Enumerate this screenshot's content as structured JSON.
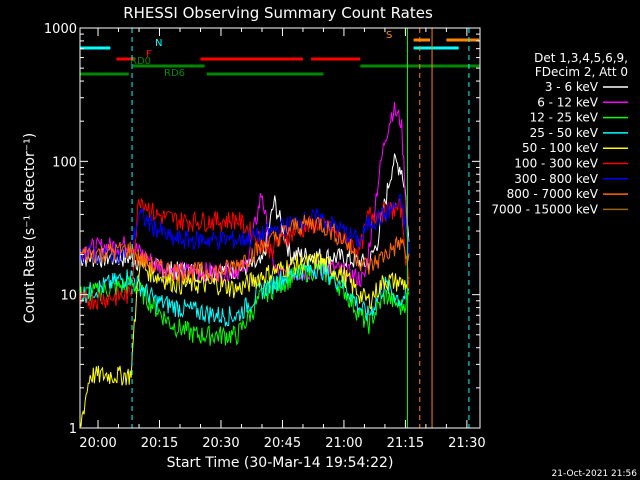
{
  "chart_data": {
    "type": "line",
    "title": "RHESSI Observing Summary Count Rates",
    "xlabel": "Start Time (30-Mar-14 19:54:22)",
    "ylabel": "Count Rate (s⁻¹ detector⁻¹)",
    "y_scale": "log",
    "ylim": [
      1,
      1000
    ],
    "xlim_minutes": [
      -4.4,
      36.6
    ],
    "x_ticks": [
      {
        "label": "20:00",
        "t": 0
      },
      {
        "label": "20:15",
        "t": 15
      },
      {
        "label": "20:30",
        "t": 30
      },
      {
        "label": "20:45",
        "t": 45
      },
      {
        "label": "21:00",
        "t": 60
      },
      {
        "label": "21:15",
        "t": 75
      },
      {
        "label": "21:30",
        "t": 90
      }
    ],
    "y_ticks": [
      {
        "label": "1",
        "v": 1
      },
      {
        "label": "10",
        "v": 10
      },
      {
        "label": "100",
        "v": 100
      },
      {
        "label": "1000",
        "v": 1000
      }
    ],
    "legend_header": [
      "Det 1,3,4,5,6,9,",
      "FDecim 2, Att 0"
    ],
    "series": [
      {
        "name": "3 - 6 keV",
        "color": "#ffffff",
        "x": [
          -4.4,
          8,
          10,
          14,
          20,
          30,
          36,
          40,
          43,
          47,
          60,
          63,
          66,
          68,
          71,
          72,
          74,
          75,
          76
        ],
        "y": [
          19,
          19,
          18,
          16,
          15,
          15,
          16,
          17,
          50,
          20,
          19,
          18,
          17,
          24,
          70,
          100,
          90,
          60,
          20
        ]
      },
      {
        "name": "6 - 12 keV",
        "color": "#ff00ff",
        "x": [
          -4.4,
          8,
          10,
          14,
          20,
          30,
          36,
          38,
          40,
          42,
          44,
          50,
          56,
          60,
          62,
          65,
          68,
          70,
          72,
          74,
          75,
          76
        ],
        "y": [
          22,
          24,
          21,
          17,
          15,
          15,
          16,
          30,
          60,
          20,
          14,
          15,
          16,
          15,
          14,
          13,
          60,
          150,
          250,
          200,
          60,
          15
        ]
      },
      {
        "name": "12 - 25 keV",
        "color": "#00ff00",
        "x": [
          -4.4,
          8,
          10,
          14,
          18,
          24,
          30,
          34,
          40,
          48,
          54,
          60,
          64,
          66,
          70,
          74,
          76
        ],
        "y": [
          10,
          12,
          11,
          8,
          6,
          5,
          5,
          5,
          10,
          14,
          16,
          11,
          7,
          6,
          10,
          8,
          10
        ]
      },
      {
        "name": "25 - 50 keV",
        "color": "#00ffff",
        "x": [
          -4.4,
          8,
          10,
          14,
          20,
          30,
          34,
          40,
          48,
          54,
          60,
          64,
          66,
          70,
          74,
          76
        ],
        "y": [
          10,
          14,
          12,
          9,
          8,
          7,
          7,
          11,
          15,
          16,
          12,
          8,
          7,
          12,
          9,
          11
        ]
      },
      {
        "name": "50 - 100 keV",
        "color": "#ffff00",
        "x": [
          -4.4,
          -2,
          8,
          10,
          14,
          20,
          30,
          34,
          40,
          48,
          54,
          60,
          64,
          66,
          70,
          76
        ],
        "y": [
          1,
          2.5,
          2.5,
          17,
          14,
          12,
          12,
          11,
          14,
          17,
          18,
          14,
          10,
          9,
          13,
          12
        ]
      },
      {
        "name": "100 - 300 keV",
        "color": "#ff0000",
        "x": [
          -4.4,
          8,
          10,
          14,
          20,
          30,
          34,
          42,
          48,
          54,
          60,
          64,
          66,
          70,
          74,
          76
        ],
        "y": [
          9,
          10,
          55,
          40,
          36,
          36,
          37,
          22,
          30,
          35,
          26,
          22,
          40,
          42,
          45,
          10
        ]
      },
      {
        "name": "300 - 800 keV",
        "color": "#0000ff",
        "x": [
          -4.4,
          8,
          10,
          14,
          18,
          24,
          30,
          34,
          40,
          48,
          54,
          60,
          64,
          66,
          70,
          74,
          76
        ],
        "y": [
          20,
          21,
          40,
          32,
          26,
          26,
          26,
          26,
          28,
          35,
          38,
          30,
          25,
          35,
          40,
          50,
          20
        ]
      },
      {
        "name": "800 - 7000 keV",
        "color": "#ff6600",
        "x": [
          -4.4,
          8,
          10,
          14,
          20,
          30,
          34,
          40,
          48,
          54,
          60,
          64,
          66,
          70,
          74,
          76
        ],
        "y": [
          20,
          22,
          19,
          16,
          15,
          15,
          17,
          23,
          33,
          35,
          26,
          18,
          16,
          20,
          25,
          17
        ]
      },
      {
        "name": "7000 - 15000 keV",
        "color": "#996600",
        "x": [],
        "y": []
      }
    ],
    "flag_bars": [
      {
        "label": "N",
        "color": "#00ffff",
        "level": 8,
        "segments": [
          [
            -4.4,
            3
          ],
          [
            77,
            88
          ]
        ]
      },
      {
        "label": "F",
        "color": "#ff0000",
        "level": 7,
        "segments": [
          [
            4.5,
            9
          ],
          [
            25,
            50
          ],
          [
            52,
            64
          ]
        ]
      },
      {
        "label": "RD0",
        "color": "#008800",
        "level": 6,
        "segments": [
          [
            8.5,
            26
          ],
          [
            64,
            99
          ]
        ]
      },
      {
        "label": "RD6",
        "color": "#008800",
        "level": 5,
        "segments": [
          [
            -4.4,
            7.5
          ],
          [
            26.5,
            55
          ]
        ]
      },
      {
        "label": "S",
        "color": "#ff8800",
        "level": 9,
        "segments": [
          [
            77,
            81
          ],
          [
            85,
            93
          ]
        ]
      }
    ],
    "vertical_lines": [
      {
        "t": -4.4,
        "color": "#00ffff",
        "style": "solid"
      },
      {
        "t": 8.3,
        "color": "#00ffff",
        "style": "dashed"
      },
      {
        "t": 75.5,
        "color": "#00ff00",
        "style": "solid"
      },
      {
        "t": 78.5,
        "color": "#ff8800",
        "style": "dashed"
      },
      {
        "t": 81.5,
        "color": "#ff8800",
        "style": "solid"
      },
      {
        "t": 90.5,
        "color": "#00ffff",
        "style": "dashed"
      }
    ]
  },
  "footer": {
    "timestamp": "21-Oct-2021 21:56"
  }
}
